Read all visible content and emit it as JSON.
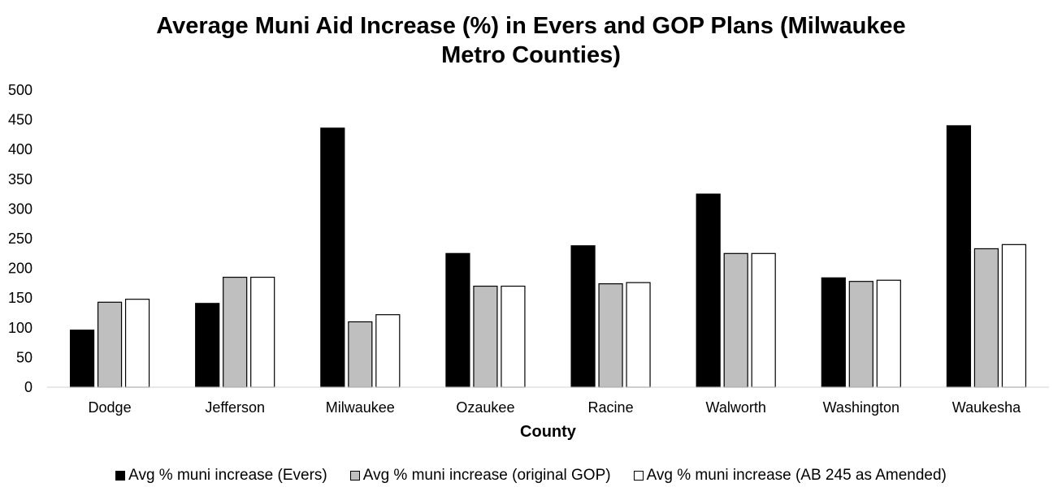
{
  "chart_data": {
    "type": "bar",
    "title_lines": [
      "Average Muni Aid Increase (%) in Evers and GOP Plans (Milwaukee",
      "Metro Counties)"
    ],
    "xlabel": "County",
    "ylabel": "",
    "ylim": [
      0,
      500
    ],
    "yticks": [
      "0",
      "50",
      "100",
      "150",
      "200",
      "250",
      "300",
      "350",
      "400",
      "450",
      "500"
    ],
    "grid": false,
    "legend_position": "bottom",
    "categories": [
      "Dodge",
      "Jefferson",
      "Milwaukee",
      "Ozaukee",
      "Racine",
      "Walworth",
      "Washington",
      "Waukesha"
    ],
    "series": [
      {
        "name": "Avg % muni increase (Evers)",
        "color": "#000000",
        "values": [
          96,
          141,
          436,
          225,
          238,
          325,
          184,
          440
        ]
      },
      {
        "name": "Avg % muni increase (original GOP)",
        "color": "#bfbfbf",
        "values": [
          143,
          185,
          110,
          170,
          174,
          225,
          178,
          233
        ]
      },
      {
        "name": "Avg % muni increase (AB 245 as Amended)",
        "color": "#ffffff",
        "values": [
          148,
          185,
          122,
          170,
          176,
          225,
          180,
          240
        ]
      }
    ]
  }
}
